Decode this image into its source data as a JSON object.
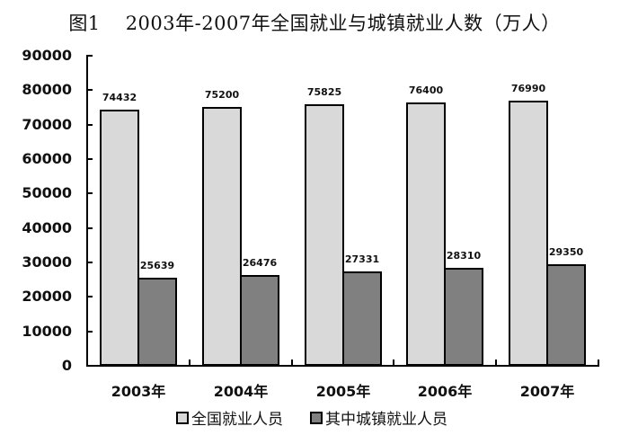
{
  "title": {
    "fig": "图1",
    "text": "2003年-2007年全国就业与城镇就业人数（万人）"
  },
  "colors": {
    "series_total": "#d9d9d9",
    "series_urban": "#808080"
  },
  "legend": [
    {
      "label": "全国就业人员"
    },
    {
      "label": "其中城镇就业人员"
    }
  ],
  "chart_data": {
    "type": "bar",
    "title": "图1 2003年-2007年全国就业与城镇就业人数（万人）",
    "xlabel": "",
    "ylabel": "",
    "categories": [
      "2003年",
      "2004年",
      "2005年",
      "2006年",
      "2007年"
    ],
    "series": [
      {
        "name": "全国就业人员",
        "values": [
          74432,
          75200,
          75825,
          76400,
          76990
        ]
      },
      {
        "name": "其中城镇就业人员",
        "values": [
          25639,
          26476,
          27331,
          28310,
          29350
        ]
      }
    ],
    "ylim": [
      0,
      90000
    ],
    "yticks": [
      "0",
      "10000",
      "20000",
      "30000",
      "40000",
      "50000",
      "60000",
      "70000",
      "80000",
      "90000"
    ],
    "grid": false,
    "legend_position": "bottom",
    "data_labels": true
  }
}
